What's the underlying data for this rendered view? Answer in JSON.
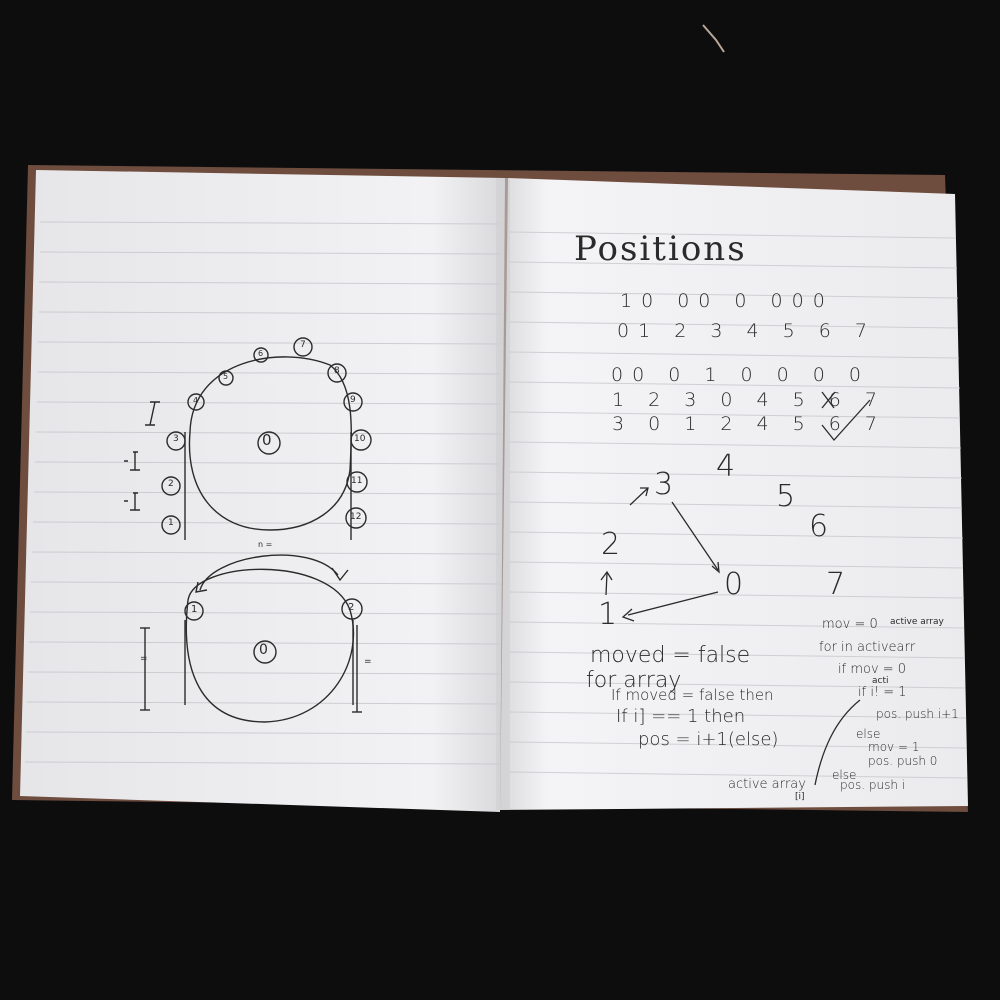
{
  "right_page": {
    "title": "Positions",
    "rows": [
      "10 00 0 000",
      "01 2 3 4 5 6 7",
      "00 0 1 0 0 0 0",
      "1 2 3 0 4 5 6 7",
      "3 0 1 2 4 5 6 7"
    ],
    "marks": [
      "X",
      "✓"
    ],
    "graph_nodes": [
      "3",
      "4",
      "5",
      "6",
      "2",
      "0",
      "7",
      "1"
    ],
    "code_left": [
      "moved = false",
      "for array",
      "If moved = false then",
      "If i] == 1 then",
      "pos = i+1(else)"
    ],
    "code_right": [
      "mov = 0",
      "active array",
      "for in activearr",
      "if mov = 0",
      "acti",
      "if i! = 1",
      "pos. push i+1",
      "else",
      "mov = 1",
      "pos. push 0",
      "else",
      "pos. push i",
      "active array",
      "[i]"
    ]
  },
  "left_page": {
    "top_circle_center": "0",
    "top_circle_numbers": [
      "1",
      "2",
      "3",
      "4",
      "5",
      "6",
      "7",
      "8",
      "9",
      "10",
      "11",
      "12"
    ],
    "top_side_marks": [
      "=I",
      "=I",
      "=I"
    ],
    "bottom_circle_center": "0",
    "bottom_circle_numbers": [
      "1",
      "2"
    ],
    "bottom_label": "n =",
    "bottom_marks": [
      "=",
      "="
    ]
  }
}
